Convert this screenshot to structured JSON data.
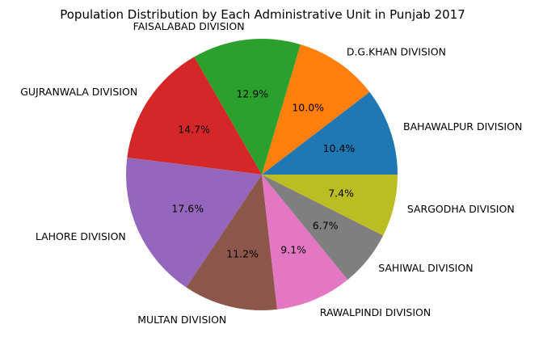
{
  "chart_data": {
    "type": "pie",
    "title": "Population Distribution by Each Administrative Unit in Punjab 2017",
    "categories": [
      "BAHAWALPUR DIVISION",
      "D.G.KHAN DIVISION",
      "FAISALABAD DIVISION",
      "GUJRANWALA DIVISION",
      "LAHORE DIVISION",
      "MULTAN DIVISION",
      "RAWALPINDI DIVISION",
      "SAHIWAL DIVISION",
      "SARGODHA DIVISION"
    ],
    "values": [
      10.4,
      10.0,
      12.9,
      14.7,
      17.6,
      11.2,
      9.1,
      6.7,
      7.4
    ],
    "percent_labels": [
      "10.4%",
      "10.0%",
      "12.9%",
      "14.7%",
      "17.6%",
      "11.2%",
      "9.1%",
      "6.7%",
      "7.4%"
    ],
    "colors": [
      "#1f77b4",
      "#ff7f0e",
      "#2ca02c",
      "#d62728",
      "#9467bd",
      "#8c564b",
      "#e377c2",
      "#7f7f7f",
      "#bcbd22"
    ],
    "start_angle_deg": 0,
    "direction": "counterclockwise",
    "legend": "none"
  }
}
